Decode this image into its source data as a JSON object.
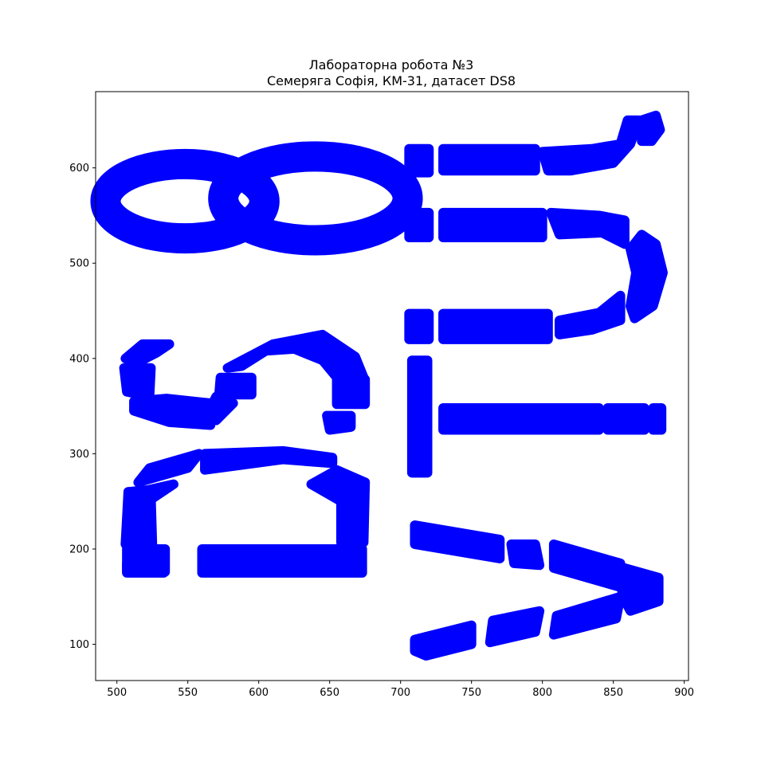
{
  "chart_data": {
    "type": "scatter",
    "title": "Лабораторна робота №3\nСемеряга Софія, КМ-31, датасет DS8",
    "title_lines": [
      "Лабораторна робота №3",
      "Семеряга Софія, КМ-31, датасет DS8"
    ],
    "xlabel": "",
    "ylabel": "",
    "xlim": [
      485,
      903
    ],
    "ylim": [
      62,
      680
    ],
    "xticks": [
      500,
      550,
      600,
      650,
      700,
      750,
      800,
      850,
      900
    ],
    "yticks": [
      100,
      200,
      300,
      400,
      500,
      600
    ],
    "grid": false,
    "marker_color": "#0000ff",
    "series": [
      {
        "values": [
          {
            "kind": "ellipse",
            "cx": 640,
            "cy": 568,
            "rx": 65,
            "ry": 44
          },
          {
            "kind": "ellipse",
            "cx": 548,
            "cy": 565,
            "rx": 56,
            "ry": 39
          },
          {
            "kind": "poly",
            "points": [
              [
                507,
                185
              ],
              [
                533,
                185
              ],
              [
                533,
                175
              ],
              [
                507,
                175
              ]
            ]
          },
          {
            "kind": "poly",
            "points": [
              [
                507,
                200
              ],
              [
                534,
                200
              ],
              [
                534,
                176
              ],
              [
                507,
                176
              ]
            ]
          },
          {
            "kind": "poly",
            "points": [
              [
                560,
                200
              ],
              [
                673,
                200
              ],
              [
                673,
                175
              ],
              [
                560,
                175
              ]
            ]
          },
          {
            "kind": "poly",
            "points": [
              [
                506,
                205
              ],
              [
                525,
                205
              ],
              [
                524,
                255
              ],
              [
                508,
                260
              ]
            ]
          },
          {
            "kind": "poly",
            "points": [
              [
                508,
                260
              ],
              [
                522,
                262
              ],
              [
                540,
                268
              ],
              [
                522,
                250
              ]
            ]
          },
          {
            "kind": "poly",
            "points": [
              [
                515,
                270
              ],
              [
                550,
                285
              ],
              [
                558,
                300
              ],
              [
                523,
                285
              ]
            ]
          },
          {
            "kind": "poly",
            "points": [
              [
                562,
                283
              ],
              [
                617,
                294
              ],
              [
                652,
                290
              ],
              [
                652,
                296
              ],
              [
                617,
                303
              ],
              [
                562,
                300
              ]
            ]
          },
          {
            "kind": "poly",
            "points": [
              [
                655,
                283
              ],
              [
                675,
                270
              ],
              [
                674,
                207
              ],
              [
                658,
                207
              ],
              [
                658,
                250
              ],
              [
                637,
                268
              ]
            ]
          },
          {
            "kind": "poly",
            "points": [
              [
                512,
                355
              ],
              [
                535,
                358
              ],
              [
                566,
                353
              ],
              [
                566,
                330
              ],
              [
                537,
                333
              ],
              [
                512,
                345
              ]
            ]
          },
          {
            "kind": "poly",
            "points": [
              [
                505,
                390
              ],
              [
                524,
                390
              ],
              [
                523,
                360
              ],
              [
                507,
                365
              ]
            ]
          },
          {
            "kind": "poly",
            "points": [
              [
                506,
                400
              ],
              [
                518,
                415
              ],
              [
                537,
                415
              ],
              [
                528,
                406
              ],
              [
                515,
                396
              ]
            ]
          },
          {
            "kind": "poly",
            "points": [
              [
                570,
                360
              ],
              [
                582,
                353
              ],
              [
                570,
                335
              ],
              [
                563,
                340
              ]
            ]
          },
          {
            "kind": "poly",
            "points": [
              [
                573,
                380
              ],
              [
                595,
                380
              ],
              [
                595,
                362
              ],
              [
                572,
                362
              ]
            ]
          },
          {
            "kind": "poly",
            "points": [
              [
                578,
                390
              ],
              [
                610,
                415
              ],
              [
                645,
                425
              ],
              [
                668,
                402
              ],
              [
                674,
                380
              ],
              [
                655,
                380
              ],
              [
                645,
                398
              ],
              [
                625,
                410
              ],
              [
                605,
                408
              ],
              [
                588,
                392
              ]
            ]
          },
          {
            "kind": "poly",
            "points": [
              [
                655,
                378
              ],
              [
                675,
                378
              ],
              [
                675,
                352
              ],
              [
                655,
                352
              ]
            ]
          },
          {
            "kind": "poly",
            "points": [
              [
                648,
                340
              ],
              [
                665,
                340
              ],
              [
                665,
                328
              ],
              [
                650,
                325
              ]
            ]
          },
          {
            "kind": "poly",
            "points": [
              [
                710,
                600
              ],
              [
                718,
                600
              ],
              [
                718,
                615
              ],
              [
                710,
                615
              ]
            ]
          },
          {
            "kind": "poly",
            "points": [
              [
                706,
                620
              ],
              [
                720,
                620
              ],
              [
                720,
                595
              ],
              [
                706,
                595
              ]
            ]
          },
          {
            "kind": "poly",
            "points": [
              [
                730,
                620
              ],
              [
                795,
                620
              ],
              [
                795,
                597
              ],
              [
                730,
                597
              ]
            ]
          },
          {
            "kind": "poly",
            "points": [
              [
                800,
                617
              ],
              [
                835,
                620
              ],
              [
                855,
                625
              ],
              [
                860,
                650
              ],
              [
                868,
                650
              ],
              [
                862,
                625
              ],
              [
                850,
                605
              ],
              [
                820,
                597
              ],
              [
                804,
                597
              ]
            ]
          },
          {
            "kind": "poly",
            "points": [
              [
                870,
                650
              ],
              [
                880,
                655
              ],
              [
                883,
                640
              ],
              [
                877,
                628
              ],
              [
                870,
                628
              ]
            ]
          },
          {
            "kind": "poly",
            "points": [
              [
                706,
                553
              ],
              [
                720,
                553
              ],
              [
                720,
                527
              ],
              [
                706,
                527
              ]
            ]
          },
          {
            "kind": "poly",
            "points": [
              [
                730,
                553
              ],
              [
                800,
                553
              ],
              [
                800,
                527
              ],
              [
                730,
                527
              ]
            ]
          },
          {
            "kind": "poly",
            "points": [
              [
                806,
                553
              ],
              [
                840,
                550
              ],
              [
                858,
                545
              ],
              [
                858,
                520
              ],
              [
                842,
                532
              ],
              [
                812,
                530
              ]
            ]
          },
          {
            "kind": "poly",
            "points": [
              [
                862,
                515
              ],
              [
                870,
                530
              ],
              [
                880,
                520
              ],
              [
                885,
                490
              ],
              [
                878,
                455
              ],
              [
                865,
                442
              ],
              [
                862,
                455
              ],
              [
                866,
                490
              ]
            ]
          },
          {
            "kind": "poly",
            "points": [
              [
                706,
                447
              ],
              [
                720,
                447
              ],
              [
                720,
                420
              ],
              [
                706,
                420
              ]
            ]
          },
          {
            "kind": "poly",
            "points": [
              [
                730,
                447
              ],
              [
                804,
                447
              ],
              [
                804,
                420
              ],
              [
                730,
                420
              ]
            ]
          },
          {
            "kind": "poly",
            "points": [
              [
                812,
                440
              ],
              [
                840,
                448
              ],
              [
                855,
                466
              ],
              [
                855,
                440
              ],
              [
                835,
                430
              ],
              [
                812,
                425
              ]
            ]
          },
          {
            "kind": "poly",
            "points": [
              [
                708,
                398
              ],
              [
                719,
                398
              ],
              [
                719,
                280
              ],
              [
                708,
                280
              ]
            ]
          },
          {
            "kind": "poly",
            "points": [
              [
                730,
                348
              ],
              [
                840,
                348
              ],
              [
                840,
                325
              ],
              [
                730,
                325
              ]
            ]
          },
          {
            "kind": "poly",
            "points": [
              [
                846,
                348
              ],
              [
                872,
                348
              ],
              [
                872,
                325
              ],
              [
                846,
                325
              ]
            ]
          },
          {
            "kind": "poly",
            "points": [
              [
                878,
                348
              ],
              [
                884,
                348
              ],
              [
                884,
                325
              ],
              [
                878,
                325
              ]
            ]
          },
          {
            "kind": "poly",
            "points": [
              [
                710,
                225
              ],
              [
                770,
                210
              ],
              [
                770,
                190
              ],
              [
                710,
                205
              ]
            ]
          },
          {
            "kind": "poly",
            "points": [
              [
                778,
                205
              ],
              [
                795,
                205
              ],
              [
                798,
                183
              ],
              [
                780,
                185
              ]
            ]
          },
          {
            "kind": "poly",
            "points": [
              [
                808,
                205
              ],
              [
                855,
                185
              ],
              [
                855,
                160
              ],
              [
                808,
                180
              ]
            ]
          },
          {
            "kind": "poly",
            "points": [
              [
                858,
                180
              ],
              [
                882,
                170
              ],
              [
                882,
                145
              ],
              [
                862,
                135
              ],
              [
                856,
                152
              ]
            ]
          },
          {
            "kind": "poly",
            "points": [
              [
                810,
                130
              ],
              [
                855,
                150
              ],
              [
                852,
                127
              ],
              [
                808,
                110
              ]
            ]
          },
          {
            "kind": "poly",
            "points": [
              [
                765,
                125
              ],
              [
                798,
                135
              ],
              [
                795,
                113
              ],
              [
                763,
                102
              ]
            ]
          },
          {
            "kind": "poly",
            "points": [
              [
                710,
                105
              ],
              [
                750,
                120
              ],
              [
                750,
                100
              ],
              [
                718,
                88
              ],
              [
                710,
                93
              ]
            ]
          }
        ]
      }
    ]
  }
}
